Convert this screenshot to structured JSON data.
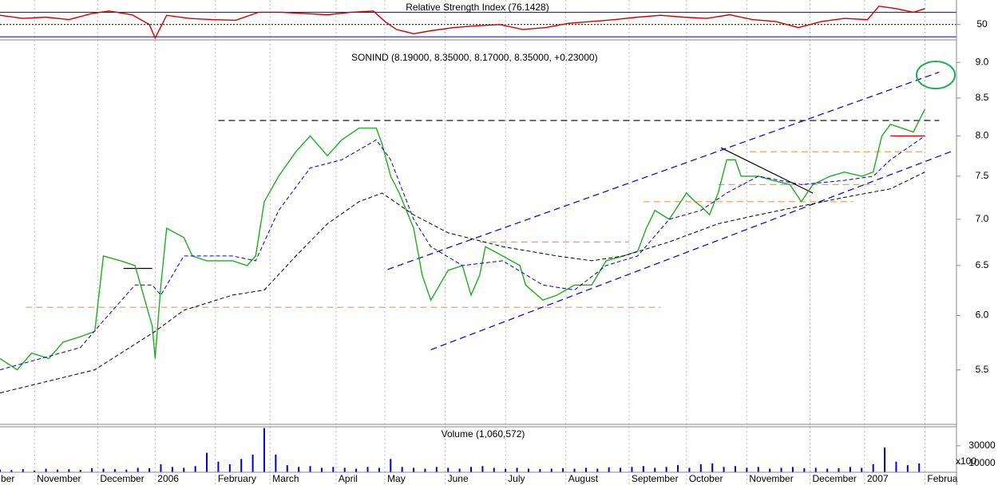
{
  "chart_data": [
    {
      "type": "line",
      "title": "Relative Strength Index (76.1428)",
      "x": [
        0,
        8,
        16,
        24,
        32,
        38,
        46,
        52,
        54,
        58,
        66,
        74,
        82,
        90,
        98,
        106,
        114,
        122,
        130,
        134,
        138,
        144,
        150,
        158,
        166,
        174,
        182,
        190,
        198,
        206,
        214,
        222,
        230,
        238,
        246,
        254,
        262,
        270,
        278,
        286,
        294,
        302,
        306,
        312,
        318,
        322
      ],
      "series": [
        {
          "color": "#cc0000",
          "values": [
            65,
            60,
            62,
            58,
            68,
            72,
            66,
            50,
            28,
            65,
            60,
            58,
            57,
            70,
            70,
            68,
            66,
            70,
            72,
            55,
            42,
            35,
            40,
            45,
            48,
            50,
            42,
            45,
            52,
            55,
            58,
            62,
            65,
            62,
            60,
            66,
            58,
            55,
            45,
            55,
            60,
            58,
            80,
            76,
            70,
            76
          ]
        }
      ],
      "xlim": [
        0,
        333
      ],
      "ylim": [
        25,
        90
      ],
      "yticks": [
        50
      ],
      "grid": true,
      "hlines": [
        {
          "y": 70,
          "color": "#0000cc"
        },
        {
          "y": 30,
          "color": "#0000cc"
        }
      ]
    },
    {
      "type": "line",
      "title": "SONIND (8.19000, 8.35000, 8.17000, 8.35000, +0.23000)",
      "log_scale": true,
      "xlim": [
        0,
        333
      ],
      "ylim": [
        5.04,
        9.33
      ],
      "yticks": [
        {
          "value": 9,
          "label": "9.0"
        },
        8.5,
        {
          "value": 8,
          "label": "8.0"
        },
        7.5,
        {
          "value": 7,
          "label": "7.0"
        },
        6.5,
        {
          "value": 6,
          "label": "6.0"
        },
        5.5
      ],
      "x": [
        0,
        6,
        11,
        17,
        22,
        28,
        33,
        36,
        42,
        47,
        53,
        54,
        56,
        58,
        64,
        67,
        72,
        81,
        86,
        89,
        92,
        97,
        103,
        108,
        114,
        119,
        125,
        131,
        133,
        136,
        139,
        144,
        147,
        150,
        156,
        161,
        164,
        167,
        169,
        175,
        181,
        183,
        189,
        194,
        200,
        206,
        211,
        217,
        222,
        225,
        228,
        233,
        239,
        242,
        244,
        247,
        250,
        253,
        256,
        258,
        264,
        269,
        275,
        279,
        283,
        289,
        294,
        300,
        304,
        307,
        310,
        314,
        318,
        322
      ],
      "series": [
        {
          "color": "#22aa22",
          "values": [
            5.6,
            5.5,
            5.65,
            5.6,
            5.75,
            5.8,
            5.85,
            6.6,
            6.55,
            6.5,
            5.9,
            5.6,
            6.3,
            6.9,
            6.8,
            6.6,
            6.55,
            6.55,
            6.5,
            6.6,
            7.2,
            7.5,
            7.8,
            8.0,
            7.75,
            7.95,
            8.1,
            8.1,
            7.9,
            7.5,
            7.3,
            6.9,
            6.4,
            6.15,
            6.45,
            6.5,
            6.2,
            6.4,
            6.7,
            6.6,
            6.5,
            6.3,
            6.15,
            6.2,
            6.3,
            6.3,
            6.55,
            6.6,
            6.65,
            6.9,
            7.1,
            7.0,
            7.3,
            7.2,
            7.15,
            7.05,
            7.3,
            7.7,
            7.7,
            7.5,
            7.5,
            7.45,
            7.4,
            7.2,
            7.4,
            7.5,
            7.55,
            7.5,
            7.55,
            8.0,
            8.15,
            8.1,
            8.05,
            8.35
          ]
        },
        {
          "color": "#0000cc",
          "dash": true,
          "x": [
            0,
            28,
            36,
            47,
            53,
            56,
            64,
            81,
            89,
            97,
            108,
            119,
            131,
            136,
            144,
            150,
            161,
            175,
            189,
            200,
            211,
            222,
            233,
            244,
            253,
            264,
            279,
            294,
            304,
            310,
            322
          ],
          "values": [
            5.5,
            5.7,
            5.95,
            6.3,
            6.3,
            6.2,
            6.6,
            6.6,
            6.55,
            7.1,
            7.6,
            7.7,
            7.95,
            7.7,
            7.0,
            6.7,
            6.5,
            6.55,
            6.3,
            6.25,
            6.5,
            6.6,
            7.0,
            7.1,
            7.3,
            7.5,
            7.4,
            7.45,
            7.5,
            7.7,
            8.0
          ]
        },
        {
          "color": "#000000",
          "dash": true,
          "x": [
            0,
            33,
            54,
            64,
            81,
            92,
            103,
            114,
            125,
            133,
            144,
            156,
            175,
            194,
            206,
            217,
            233,
            250,
            264,
            279,
            294,
            310,
            322
          ],
          "values": [
            5.3,
            5.5,
            5.85,
            6.05,
            6.2,
            6.25,
            6.6,
            6.95,
            7.2,
            7.3,
            7.05,
            6.85,
            6.7,
            6.6,
            6.55,
            6.6,
            6.75,
            6.95,
            7.05,
            7.15,
            7.25,
            7.35,
            7.55
          ]
        }
      ],
      "trend_lines": [
        {
          "x": [
            76,
            327
          ],
          "y": [
            8.2,
            8.2
          ],
          "color": "#000000",
          "dash": true
        },
        {
          "x": [
            9,
            230
          ],
          "y": [
            6.08,
            6.08
          ],
          "color": "#ee9955",
          "dash": true
        },
        {
          "x": [
            167,
            219
          ],
          "y": [
            6.75,
            6.75
          ],
          "color": "#ee9955",
          "dash": true
        },
        {
          "x": [
            224,
            297
          ],
          "y": [
            7.2,
            7.2
          ],
          "color": "#ee9955",
          "dash": true
        },
        {
          "x": [
            250,
            305
          ],
          "y": [
            7.4,
            7.4
          ],
          "color": "#ee9955",
          "dash": true
        },
        {
          "x": [
            261,
            322
          ],
          "y": [
            7.8,
            7.8
          ],
          "color": "#ee9955",
          "dash": true
        },
        {
          "x": [
            43,
            53
          ],
          "y": [
            6.47,
            6.47
          ],
          "color": "#000000",
          "dash": false
        },
        {
          "x": [
            310,
            322
          ],
          "y": [
            8.0,
            8.0
          ],
          "color": "#cc0000",
          "dash": false
        },
        {
          "x": [
            251,
            283
          ],
          "y": [
            7.85,
            7.3
          ],
          "color": "#000000",
          "dash": false
        },
        {
          "x": [
            135,
            327
          ],
          "y": [
            6.46,
            8.86
          ],
          "color": "#0000cc",
          "dash": true
        },
        {
          "x": [
            150,
            331
          ],
          "y": [
            5.68,
            7.8
          ],
          "color": "#0000cc",
          "dash": true
        }
      ]
    },
    {
      "type": "bar",
      "title": "Volume (1,060,572)",
      "yaxis_note": "x100",
      "color": "#0000cc",
      "xlim": [
        0,
        333
      ],
      "ylim": [
        0,
        51500
      ],
      "yticks": [
        30000,
        10000
      ],
      "xticks": [
        {
          "value": -1,
          "label": "ber"
        },
        {
          "value": 12,
          "label": "November"
        },
        {
          "value": 34,
          "label": "December"
        },
        {
          "value": 54,
          "label": "2006"
        },
        {
          "value": 75,
          "label": "February"
        },
        {
          "value": 94,
          "label": "March"
        },
        {
          "value": 117,
          "label": "April"
        },
        {
          "value": 134,
          "label": "May"
        },
        {
          "value": 155,
          "label": "June"
        },
        {
          "value": 176,
          "label": "July"
        },
        {
          "value": 197,
          "label": "August"
        },
        {
          "value": 219,
          "label": "September"
        },
        {
          "value": 239,
          "label": "October"
        },
        {
          "value": 260,
          "label": "November"
        },
        {
          "value": 282,
          "label": "December"
        },
        {
          "value": 301,
          "label": "2007"
        },
        {
          "value": 322,
          "label": "Februa"
        }
      ],
      "x": [
        0,
        4,
        8,
        12,
        16,
        20,
        24,
        28,
        32,
        36,
        40,
        44,
        48,
        52,
        56,
        60,
        64,
        68,
        72,
        76,
        80,
        84,
        88,
        92,
        96,
        100,
        104,
        108,
        112,
        116,
        120,
        124,
        128,
        132,
        136,
        140,
        144,
        148,
        152,
        156,
        160,
        164,
        168,
        172,
        176,
        180,
        184,
        188,
        192,
        196,
        200,
        204,
        208,
        212,
        216,
        220,
        224,
        228,
        232,
        236,
        240,
        244,
        248,
        252,
        256,
        260,
        264,
        268,
        272,
        276,
        280,
        284,
        288,
        292,
        296,
        300,
        304,
        308,
        312,
        316,
        320
      ],
      "values": [
        3000,
        2500,
        3500,
        2000,
        4000,
        3000,
        3500,
        2800,
        4500,
        4000,
        3500,
        3000,
        5000,
        4500,
        9000,
        6000,
        5000,
        7000,
        22000,
        12000,
        9000,
        15000,
        20000,
        50000,
        20000,
        8000,
        6000,
        7000,
        5000,
        6000,
        5000,
        4000,
        6000,
        5000,
        15000,
        6000,
        5000,
        4000,
        6000,
        5000,
        4000,
        6000,
        7000,
        5000,
        4000,
        5000,
        4000,
        3500,
        4000,
        4500,
        4000,
        5000,
        4000,
        5500,
        5000,
        6000,
        7000,
        5000,
        6000,
        8000,
        5000,
        9000,
        10000,
        6000,
        7000,
        5000,
        6000,
        4000,
        5000,
        6000,
        4500,
        5000,
        4000,
        4500,
        6000,
        5000,
        9000,
        28000,
        12000,
        8000,
        10000
      ]
    }
  ]
}
